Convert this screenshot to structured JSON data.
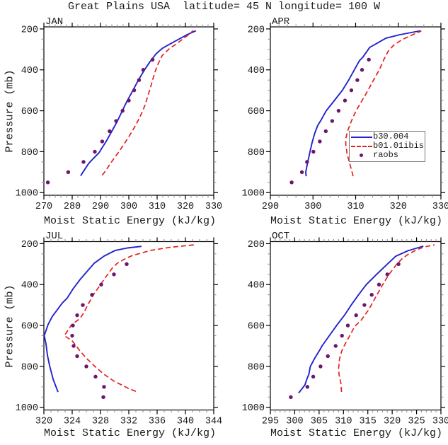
{
  "title": "Great Plains USA  latitude= 45 N longitude= 100 W",
  "styles": {
    "model_color": "#2222cc",
    "ibis_color": "#e62020",
    "obs_color": "#6e156e",
    "axis_color": "#000000",
    "minor_tick_color": "#8a8a8a"
  },
  "axes": {
    "xlabel": "Moist Static Energy (kJ/kg)",
    "ylabel": "Pressure (mb)",
    "ylim": [
      190,
      1013
    ],
    "yticks": [
      200,
      400,
      600,
      800,
      1000
    ],
    "y_minor_step": 50,
    "y_axis_inverted": true,
    "grid": false
  },
  "legend": {
    "position": "inside-APR-panel",
    "entries": [
      {
        "label": "b30.004",
        "marker": "solid-line",
        "color": "#2222cc"
      },
      {
        "label": "b01.01ibis",
        "marker": "dashed-line",
        "color": "#e62020"
      },
      {
        "label": "raobs",
        "marker": "dot",
        "color": "#6e156e"
      }
    ]
  },
  "chart_data": [
    {
      "type": "line",
      "panel": "JAN",
      "xlim": [
        270,
        330
      ],
      "xticks": [
        270,
        280,
        290,
        300,
        310,
        320,
        330
      ],
      "x_minor_step": 2,
      "series": [
        {
          "name": "b30.004",
          "style": "solid",
          "color": "#2222cc",
          "points": [
            [
              283,
              918
            ],
            [
              283.8,
              900
            ],
            [
              285.8,
              858
            ],
            [
              287.5,
              833
            ],
            [
              289.5,
              805
            ],
            [
              290.6,
              780
            ],
            [
              292,
              750
            ],
            [
              294,
              700
            ],
            [
              295.8,
              655
            ],
            [
              297.7,
              600
            ],
            [
              299.4,
              552
            ],
            [
              301.4,
              502
            ],
            [
              303.3,
              452
            ],
            [
              305.4,
              403
            ],
            [
              307.4,
              362
            ],
            [
              309.6,
              322
            ],
            [
              311.8,
              295
            ],
            [
              313.3,
              283
            ],
            [
              317.8,
              249
            ],
            [
              320.6,
              228
            ],
            [
              323.7,
              209
            ]
          ]
        },
        {
          "name": "b01.01ibis",
          "style": "dashed",
          "color": "#e62020",
          "points": [
            [
              290.6,
              915
            ],
            [
              291.6,
              897
            ],
            [
              294,
              848
            ],
            [
              295.9,
              812
            ],
            [
              298,
              770
            ],
            [
              300.1,
              725
            ],
            [
              301.9,
              683
            ],
            [
              303.4,
              645
            ],
            [
              304.7,
              607
            ],
            [
              305.8,
              570
            ],
            [
              306.9,
              520
            ],
            [
              308,
              470
            ],
            [
              309,
              420
            ],
            [
              310.2,
              375
            ],
            [
              311.8,
              330
            ],
            [
              314.3,
              297
            ],
            [
              316.3,
              278
            ],
            [
              319.4,
              246
            ],
            [
              321.7,
              222
            ],
            [
              322.7,
              208
            ]
          ]
        },
        {
          "name": "raobs",
          "style": "dots",
          "color": "#6e156e",
          "points": [
            [
              271.4,
              950
            ],
            [
              278.6,
              900
            ],
            [
              284,
              850
            ],
            [
              288,
              800
            ],
            [
              290.6,
              750
            ],
            [
              293.2,
              700
            ],
            [
              295.5,
              650
            ],
            [
              297.8,
              600
            ],
            [
              300,
              550
            ],
            [
              301.9,
              500
            ],
            [
              303.6,
              450
            ],
            [
              305.1,
              400
            ],
            [
              308.4,
              350
            ]
          ]
        }
      ]
    },
    {
      "type": "line",
      "panel": "APR",
      "xlim": [
        290,
        330
      ],
      "xticks": [
        290,
        300,
        310,
        320,
        330
      ],
      "x_minor_step": 2,
      "series": [
        {
          "name": "b30.004",
          "style": "solid",
          "color": "#2222cc",
          "points": [
            [
              298.4,
              920
            ],
            [
              298.3,
              900
            ],
            [
              298.6,
              868
            ],
            [
              298.9,
              838
            ],
            [
              299.3,
              800
            ],
            [
              299.8,
              755
            ],
            [
              300.4,
              710
            ],
            [
              301.1,
              672
            ],
            [
              301.9,
              645
            ],
            [
              303.1,
              600
            ],
            [
              305,
              550
            ],
            [
              306.9,
              500
            ],
            [
              308.3,
              452
            ],
            [
              309.7,
              400
            ],
            [
              310.9,
              355
            ],
            [
              311.7,
              338
            ],
            [
              313.3,
              290
            ],
            [
              315.2,
              268
            ],
            [
              317.1,
              245
            ],
            [
              320.4,
              228
            ],
            [
              325.2,
              209
            ]
          ]
        },
        {
          "name": "b01.01ibis",
          "style": "dashed",
          "color": "#e62020",
          "points": [
            [
              309.4,
              920
            ],
            [
              309.1,
              895
            ],
            [
              308.5,
              850
            ],
            [
              308,
              810
            ],
            [
              307.7,
              765
            ],
            [
              307.7,
              735
            ],
            [
              308.1,
              700
            ],
            [
              309,
              650
            ],
            [
              310.1,
              600
            ],
            [
              311.5,
              550
            ],
            [
              312.9,
              500
            ],
            [
              314.2,
              450
            ],
            [
              315.6,
              398
            ],
            [
              316.6,
              350
            ],
            [
              317.6,
              310
            ],
            [
              318.9,
              280
            ],
            [
              320.9,
              252
            ],
            [
              322.9,
              233
            ],
            [
              325.4,
              210
            ]
          ]
        },
        {
          "name": "raobs",
          "style": "dots",
          "color": "#6e156e",
          "points": [
            [
              295,
              950
            ],
            [
              297.4,
              900
            ],
            [
              298.6,
              850
            ],
            [
              300.1,
              800
            ],
            [
              301.6,
              750
            ],
            [
              303,
              700
            ],
            [
              304.5,
              650
            ],
            [
              306,
              600
            ],
            [
              307.5,
              550
            ],
            [
              309,
              500
            ],
            [
              310.4,
              450
            ],
            [
              311.5,
              400
            ],
            [
              313.1,
              350
            ]
          ]
        }
      ]
    },
    {
      "type": "line",
      "panel": "JUL",
      "xlim": [
        320,
        344
      ],
      "xticks": [
        320,
        324,
        328,
        332,
        336,
        340,
        344
      ],
      "x_minor_step": 1,
      "series": [
        {
          "name": "b30.004",
          "style": "solid",
          "color": "#2222cc",
          "points": [
            [
              322,
              925
            ],
            [
              321.3,
              862
            ],
            [
              320.8,
              795
            ],
            [
              320.5,
              745
            ],
            [
              320.3,
              690
            ],
            [
              320.05,
              650
            ],
            [
              320.6,
              595
            ],
            [
              321.2,
              555
            ],
            [
              321.9,
              523
            ],
            [
              322.6,
              490
            ],
            [
              323.3,
              466
            ],
            [
              324.1,
              422
            ],
            [
              325.1,
              376
            ],
            [
              326.1,
              336
            ],
            [
              327.1,
              296
            ],
            [
              328.5,
              261
            ],
            [
              330.1,
              233
            ],
            [
              331.8,
              221
            ],
            [
              333.8,
              213
            ]
          ]
        },
        {
          "name": "b01.01ibis",
          "style": "dashed",
          "color": "#e62020",
          "points": [
            [
              333,
              922
            ],
            [
              331.8,
              905
            ],
            [
              329.8,
              870
            ],
            [
              328.4,
              836
            ],
            [
              327.2,
              800
            ],
            [
              326,
              760
            ],
            [
              325,
              720
            ],
            [
              324,
              675
            ],
            [
              322.9,
              650
            ],
            [
              323.9,
              597
            ],
            [
              325.1,
              566
            ],
            [
              325.6,
              540
            ],
            [
              326.2,
              500
            ],
            [
              327,
              450
            ],
            [
              327.9,
              405
            ],
            [
              328.8,
              360
            ],
            [
              329.7,
              318
            ],
            [
              330.4,
              295
            ],
            [
              331.6,
              272
            ],
            [
              332.5,
              258
            ],
            [
              335.1,
              233
            ],
            [
              337.8,
              218
            ],
            [
              341.2,
              206
            ]
          ]
        },
        {
          "name": "raobs",
          "style": "dots",
          "color": "#6e156e",
          "points": [
            [
              328.4,
              950
            ],
            [
              328.5,
              900
            ],
            [
              327.3,
              850
            ],
            [
              326,
              800
            ],
            [
              324.7,
              750
            ],
            [
              324.2,
              700
            ],
            [
              324,
              650
            ],
            [
              324.1,
              600
            ],
            [
              324.7,
              550
            ],
            [
              325.5,
              500
            ],
            [
              326.8,
              450
            ],
            [
              328.1,
              400
            ],
            [
              329.9,
              350
            ],
            [
              331.7,
              300
            ]
          ]
        }
      ]
    },
    {
      "type": "line",
      "panel": "OCT",
      "xlim": [
        295,
        330
      ],
      "xticks": [
        295,
        300,
        305,
        310,
        315,
        320,
        325,
        330
      ],
      "x_minor_step": 1,
      "series": [
        {
          "name": "b30.004",
          "style": "solid",
          "color": "#2222cc",
          "points": [
            [
              300.8,
              930
            ],
            [
              301.4,
              912
            ],
            [
              302.1,
              890
            ],
            [
              302.5,
              862
            ],
            [
              302.9,
              838
            ],
            [
              303.2,
              800
            ],
            [
              304.1,
              760
            ],
            [
              305.1,
              722
            ],
            [
              305.6,
              700
            ],
            [
              307.1,
              650
            ],
            [
              308.6,
              600
            ],
            [
              310.2,
              550
            ],
            [
              311.6,
              500
            ],
            [
              313.1,
              450
            ],
            [
              314.7,
              400
            ],
            [
              316.8,
              350
            ],
            [
              319,
              300
            ],
            [
              320.7,
              262
            ],
            [
              323.2,
              235
            ],
            [
              326.4,
              212
            ]
          ]
        },
        {
          "name": "b01.01ibis",
          "style": "dashed",
          "color": "#e62020",
          "points": [
            [
              309.6,
              925
            ],
            [
              309.5,
              885
            ],
            [
              309.1,
              840
            ],
            [
              309,
              810
            ],
            [
              309.2,
              762
            ],
            [
              309.7,
              722
            ],
            [
              310.3,
              692
            ],
            [
              311.3,
              650
            ],
            [
              312.3,
              605
            ],
            [
              313.7,
              572
            ],
            [
              315.2,
              522
            ],
            [
              316.6,
              462
            ],
            [
              317.9,
              406
            ],
            [
              319.3,
              352
            ],
            [
              320.9,
              302
            ],
            [
              322.1,
              272
            ],
            [
              323.4,
              250
            ],
            [
              325,
              230
            ],
            [
              326.6,
              216
            ],
            [
              328.7,
              206
            ]
          ]
        },
        {
          "name": "raobs",
          "style": "dots",
          "color": "#6e156e",
          "points": [
            [
              299.2,
              950
            ],
            [
              302.6,
              900
            ],
            [
              303.8,
              850
            ],
            [
              305.3,
              800
            ],
            [
              306.8,
              750
            ],
            [
              308.4,
              700
            ],
            [
              309.7,
              650
            ],
            [
              310.9,
              600
            ],
            [
              312.6,
              550
            ],
            [
              314.3,
              500
            ],
            [
              315.8,
              450
            ],
            [
              317.3,
              400
            ],
            [
              319,
              350
            ],
            [
              321.3,
              300
            ]
          ]
        }
      ]
    }
  ]
}
